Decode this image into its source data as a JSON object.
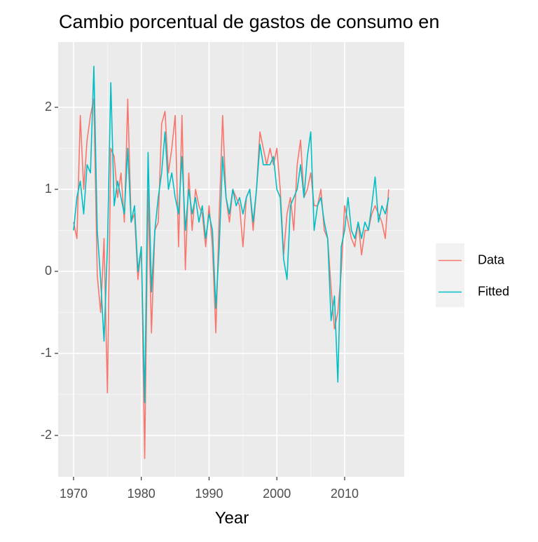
{
  "chart_data": {
    "type": "line",
    "title": "Cambio porcentual de gastos de consumo en",
    "xlabel": "Year",
    "x": [
      1970,
      1970.5,
      1971,
      1971.5,
      1972,
      1972.5,
      1973,
      1973.5,
      1974,
      1974.5,
      1975,
      1975.5,
      1976,
      1976.5,
      1977,
      1977.5,
      1978,
      1978.5,
      1979,
      1979.5,
      1980,
      1980.5,
      1981,
      1981.5,
      1982,
      1982.5,
      1983,
      1983.5,
      1984,
      1984.5,
      1985,
      1985.5,
      1986,
      1986.5,
      1987,
      1987.5,
      1988,
      1988.5,
      1989,
      1989.5,
      1990,
      1990.5,
      1991,
      1991.5,
      1992,
      1992.5,
      1993,
      1993.5,
      1994,
      1994.5,
      1995,
      1995.5,
      1996,
      1996.5,
      1997,
      1997.5,
      1998,
      1998.5,
      1999,
      1999.5,
      2000,
      2000.5,
      2001,
      2001.5,
      2002,
      2002.5,
      2003,
      2003.5,
      2004,
      2004.5,
      2005,
      2005.5,
      2006,
      2006.5,
      2007,
      2007.5,
      2008,
      2008.5,
      2009,
      2009.5,
      2010,
      2010.5,
      2011,
      2011.5,
      2012,
      2012.5,
      2013,
      2013.5,
      2014,
      2014.5,
      2015,
      2015.5,
      2016,
      2016.5
    ],
    "series": [
      {
        "name": "Data",
        "color": "#F8766D",
        "values": [
          0.6,
          0.4,
          1.9,
          1.0,
          1.6,
          1.9,
          2.1,
          -0.05,
          -0.5,
          0.4,
          -1.48,
          1.5,
          1.4,
          0.9,
          1.2,
          0.6,
          2.1,
          0.6,
          0.7,
          -0.1,
          0.3,
          -2.28,
          1.0,
          -0.75,
          0.5,
          0.6,
          1.8,
          1.95,
          1.2,
          1.5,
          1.9,
          0.3,
          1.9,
          0.02,
          1.2,
          0.5,
          1.0,
          0.8,
          0.7,
          0.3,
          0.8,
          0.3,
          -0.75,
          0.7,
          1.9,
          0.9,
          0.6,
          1.0,
          0.9,
          0.8,
          0.3,
          0.9,
          1.0,
          0.5,
          1.0,
          1.7,
          1.5,
          1.3,
          1.5,
          1.3,
          1.5,
          1.0,
          0.2,
          0.7,
          0.9,
          0.5,
          1.3,
          1.6,
          0.9,
          1.0,
          1.2,
          0.8,
          0.8,
          1.0,
          0.5,
          0.4,
          -0.2,
          -0.7,
          -0.5,
          0.0,
          0.8,
          0.6,
          0.4,
          0.3,
          0.6,
          0.2,
          0.5,
          0.5,
          0.7,
          0.8,
          0.7,
          0.6,
          0.4,
          1.0
        ]
      },
      {
        "name": "Fitted",
        "color": "#00BFC4",
        "values": [
          0.5,
          0.9,
          1.1,
          0.7,
          1.3,
          1.2,
          2.5,
          0.5,
          -0.1,
          -0.85,
          0.3,
          2.3,
          0.8,
          1.1,
          0.9,
          0.7,
          1.5,
          0.6,
          0.8,
          0.0,
          0.3,
          -1.6,
          1.45,
          -0.25,
          0.5,
          0.9,
          1.2,
          1.7,
          1.0,
          1.2,
          0.9,
          0.7,
          1.4,
          0.5,
          1.0,
          0.7,
          0.9,
          0.6,
          0.8,
          0.4,
          0.7,
          0.5,
          -0.45,
          0.3,
          1.4,
          0.9,
          0.7,
          1.0,
          0.8,
          0.9,
          0.7,
          0.9,
          1.0,
          0.6,
          1.0,
          1.55,
          1.3,
          1.3,
          1.3,
          1.4,
          1.0,
          0.9,
          0.15,
          -0.1,
          0.8,
          0.9,
          1.0,
          1.3,
          0.9,
          1.4,
          1.7,
          0.5,
          0.8,
          0.9,
          0.6,
          0.4,
          -0.6,
          -0.3,
          -1.35,
          0.3,
          0.5,
          0.9,
          0.5,
          0.4,
          0.6,
          0.4,
          0.6,
          0.5,
          0.8,
          1.15,
          0.6,
          0.8,
          0.7,
          0.9
        ]
      }
    ],
    "xlim": [
      1967.73,
      2018.79
    ],
    "xticks": [
      1970,
      1980,
      1990,
      2000,
      2010
    ],
    "ylim": [
      -2.504,
      2.795
    ],
    "yticks": [
      -2,
      -1,
      0,
      1,
      2
    ],
    "grid": true,
    "legend": "right"
  }
}
